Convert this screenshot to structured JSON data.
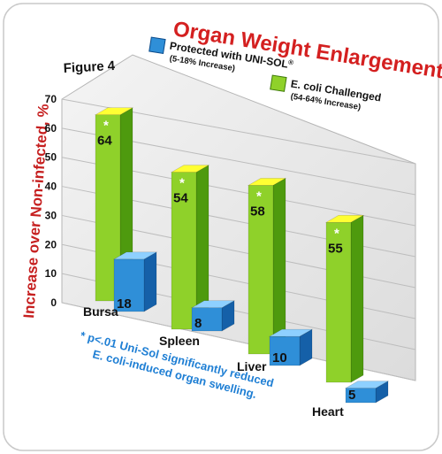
{
  "chart_data": {
    "type": "bar",
    "figure_label": "Figure 4",
    "title": "Organ Weight Enlargement",
    "ylabel": "Increase over Non-infected, %",
    "yticks": [
      0,
      10,
      20,
      30,
      40,
      50,
      60,
      70
    ],
    "ylim": [
      0,
      70
    ],
    "categories": [
      "Bursa",
      "Spleen",
      "Liver",
      "Heart"
    ],
    "series": [
      {
        "name": "Protected with UNI-SOL",
        "superscript": "®",
        "note": "(5-18% Increase)",
        "values": [
          18,
          8,
          10,
          5
        ],
        "colors": {
          "front": "#2f8fd8",
          "side": "#1560a8",
          "top": "#8ed0ff"
        }
      },
      {
        "name": "E. coli Challenged",
        "note": "(54-64% Increase)",
        "values": [
          64,
          54,
          58,
          55
        ],
        "significance_marker": "*",
        "colors": {
          "front": "#8fd12a",
          "side": "#4e9a0e",
          "top": "#ffff33"
        }
      }
    ],
    "footnote": [
      "* p<.01 Uni-Sol significantly reduced",
      "E. coli-induced organ swelling."
    ],
    "grid": true,
    "legend_position": "top-right"
  }
}
